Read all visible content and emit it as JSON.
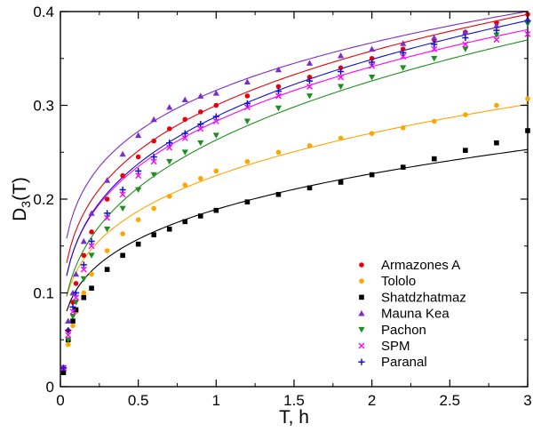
{
  "chart_data": {
    "type": "scatter",
    "title": "",
    "xlabel": "T, h",
    "ylabel_main": "D",
    "ylabel_sub": "3",
    "ylabel_tail": "(T)",
    "xlim": [
      0,
      3
    ],
    "ylim": [
      0,
      0.4
    ],
    "xticks": [
      0,
      0.5,
      1,
      1.5,
      2,
      2.5,
      3
    ],
    "xtick_labels": [
      "0",
      "0.5",
      "1",
      "1.5",
      "2",
      "2.5",
      "3"
    ],
    "yticks": [
      0,
      0.1,
      0.2,
      0.3,
      0.4
    ],
    "ytick_labels": [
      "0",
      "0.1",
      "0.2",
      "0.3",
      "0.4"
    ],
    "grid": false,
    "legend_position": "bottom-right",
    "series": [
      {
        "name": "Armazones A",
        "color": "#e8000b",
        "marker": "circle",
        "values": [
          [
            0.02,
            0.02
          ],
          [
            0.05,
            0.06
          ],
          [
            0.08,
            0.09
          ],
          [
            0.1,
            0.11
          ],
          [
            0.15,
            0.14
          ],
          [
            0.2,
            0.165
          ],
          [
            0.3,
            0.2
          ],
          [
            0.4,
            0.225
          ],
          [
            0.5,
            0.245
          ],
          [
            0.6,
            0.262
          ],
          [
            0.7,
            0.275
          ],
          [
            0.8,
            0.285
          ],
          [
            0.9,
            0.293
          ],
          [
            1.0,
            0.3
          ],
          [
            1.2,
            0.31
          ],
          [
            1.4,
            0.32
          ],
          [
            1.6,
            0.33
          ],
          [
            1.8,
            0.34
          ],
          [
            2.0,
            0.35
          ],
          [
            2.2,
            0.36
          ],
          [
            2.4,
            0.37
          ],
          [
            2.6,
            0.378
          ],
          [
            2.8,
            0.388
          ],
          [
            3.0,
            0.397
          ]
        ]
      },
      {
        "name": "Tololo",
        "color": "#ffa500",
        "marker": "circle",
        "values": [
          [
            0.02,
            0.02
          ],
          [
            0.05,
            0.045
          ],
          [
            0.08,
            0.065
          ],
          [
            0.1,
            0.08
          ],
          [
            0.15,
            0.1
          ],
          [
            0.2,
            0.12
          ],
          [
            0.3,
            0.145
          ],
          [
            0.4,
            0.163
          ],
          [
            0.5,
            0.178
          ],
          [
            0.6,
            0.19
          ],
          [
            0.7,
            0.203
          ],
          [
            0.8,
            0.215
          ],
          [
            0.9,
            0.222
          ],
          [
            1.0,
            0.23
          ],
          [
            1.2,
            0.24
          ],
          [
            1.4,
            0.25
          ],
          [
            1.6,
            0.257
          ],
          [
            1.8,
            0.265
          ],
          [
            2.0,
            0.27
          ],
          [
            2.2,
            0.276
          ],
          [
            2.4,
            0.283
          ],
          [
            2.6,
            0.29
          ],
          [
            2.8,
            0.3
          ],
          [
            3.0,
            0.307
          ]
        ]
      },
      {
        "name": "Shatdzhatmaz",
        "color": "#000000",
        "marker": "square",
        "values": [
          [
            0.02,
            0.015
          ],
          [
            0.05,
            0.05
          ],
          [
            0.08,
            0.07
          ],
          [
            0.1,
            0.082
          ],
          [
            0.15,
            0.095
          ],
          [
            0.2,
            0.105
          ],
          [
            0.3,
            0.125
          ],
          [
            0.4,
            0.14
          ],
          [
            0.5,
            0.152
          ],
          [
            0.6,
            0.162
          ],
          [
            0.7,
            0.168
          ],
          [
            0.8,
            0.176
          ],
          [
            0.9,
            0.182
          ],
          [
            1.0,
            0.188
          ],
          [
            1.2,
            0.197
          ],
          [
            1.4,
            0.205
          ],
          [
            1.6,
            0.212
          ],
          [
            1.8,
            0.218
          ],
          [
            2.0,
            0.226
          ],
          [
            2.2,
            0.234
          ],
          [
            2.4,
            0.243
          ],
          [
            2.6,
            0.252
          ],
          [
            2.8,
            0.26
          ],
          [
            3.0,
            0.273
          ]
        ]
      },
      {
        "name": "Mauna Kea",
        "color": "#7a2ec9",
        "marker": "triangle-up",
        "values": [
          [
            0.02,
            0.02
          ],
          [
            0.05,
            0.07
          ],
          [
            0.08,
            0.1
          ],
          [
            0.1,
            0.12
          ],
          [
            0.15,
            0.155
          ],
          [
            0.2,
            0.185
          ],
          [
            0.3,
            0.22
          ],
          [
            0.4,
            0.248
          ],
          [
            0.5,
            0.268
          ],
          [
            0.6,
            0.285
          ],
          [
            0.7,
            0.298
          ],
          [
            0.8,
            0.306
          ],
          [
            0.9,
            0.31
          ],
          [
            1.0,
            0.313
          ],
          [
            1.2,
            0.325
          ],
          [
            1.4,
            0.338
          ],
          [
            1.6,
            0.345
          ],
          [
            1.8,
            0.353
          ],
          [
            2.0,
            0.36
          ],
          [
            2.2,
            0.366
          ],
          [
            2.4,
            0.372
          ],
          [
            2.6,
            0.378
          ],
          [
            2.8,
            0.385
          ],
          [
            3.0,
            0.392
          ]
        ]
      },
      {
        "name": "Pachon",
        "color": "#1e8f1e",
        "marker": "triangle-down",
        "values": [
          [
            0.02,
            0.02
          ],
          [
            0.05,
            0.05
          ],
          [
            0.08,
            0.075
          ],
          [
            0.1,
            0.09
          ],
          [
            0.15,
            0.115
          ],
          [
            0.2,
            0.14
          ],
          [
            0.3,
            0.168
          ],
          [
            0.4,
            0.19
          ],
          [
            0.5,
            0.21
          ],
          [
            0.6,
            0.226
          ],
          [
            0.7,
            0.24
          ],
          [
            0.8,
            0.25
          ],
          [
            0.9,
            0.26
          ],
          [
            1.0,
            0.268
          ],
          [
            1.2,
            0.283
          ],
          [
            1.4,
            0.297
          ],
          [
            1.6,
            0.31
          ],
          [
            1.8,
            0.32
          ],
          [
            2.0,
            0.33
          ],
          [
            2.2,
            0.34
          ],
          [
            2.4,
            0.35
          ],
          [
            2.6,
            0.36
          ],
          [
            2.8,
            0.375
          ],
          [
            3.0,
            0.387
          ]
        ]
      },
      {
        "name": "SPM",
        "color": "#ff00ff",
        "marker": "x",
        "values": [
          [
            0.02,
            0.02
          ],
          [
            0.05,
            0.055
          ],
          [
            0.08,
            0.08
          ],
          [
            0.1,
            0.095
          ],
          [
            0.15,
            0.125
          ],
          [
            0.2,
            0.15
          ],
          [
            0.3,
            0.18
          ],
          [
            0.4,
            0.205
          ],
          [
            0.5,
            0.225
          ],
          [
            0.6,
            0.24
          ],
          [
            0.7,
            0.255
          ],
          [
            0.8,
            0.265
          ],
          [
            0.9,
            0.275
          ],
          [
            1.0,
            0.283
          ],
          [
            1.2,
            0.298
          ],
          [
            1.4,
            0.31
          ],
          [
            1.6,
            0.32
          ],
          [
            1.8,
            0.33
          ],
          [
            2.0,
            0.342
          ],
          [
            2.2,
            0.352
          ],
          [
            2.4,
            0.36
          ],
          [
            2.6,
            0.365
          ],
          [
            2.8,
            0.37
          ],
          [
            3.0,
            0.376
          ]
        ]
      },
      {
        "name": "Paranal",
        "color": "#1010d0",
        "marker": "plus",
        "values": [
          [
            0.02,
            0.02
          ],
          [
            0.05,
            0.06
          ],
          [
            0.08,
            0.085
          ],
          [
            0.1,
            0.1
          ],
          [
            0.15,
            0.13
          ],
          [
            0.2,
            0.155
          ],
          [
            0.3,
            0.185
          ],
          [
            0.4,
            0.21
          ],
          [
            0.5,
            0.23
          ],
          [
            0.6,
            0.245
          ],
          [
            0.7,
            0.26
          ],
          [
            0.8,
            0.27
          ],
          [
            0.9,
            0.28
          ],
          [
            1.0,
            0.288
          ],
          [
            1.2,
            0.302
          ],
          [
            1.4,
            0.315
          ],
          [
            1.6,
            0.326
          ],
          [
            1.8,
            0.336
          ],
          [
            2.0,
            0.346
          ],
          [
            2.2,
            0.356
          ],
          [
            2.4,
            0.365
          ],
          [
            2.6,
            0.372
          ],
          [
            2.8,
            0.38
          ],
          [
            3.0,
            0.39
          ]
        ]
      }
    ],
    "fits": [
      {
        "series": "Armazones A",
        "a": 0.3,
        "b": 0.255
      },
      {
        "series": "Tololo",
        "a": 0.225,
        "b": 0.265
      },
      {
        "series": "Shatdzhatmaz",
        "a": 0.189,
        "b": 0.265
      },
      {
        "series": "Mauna Kea",
        "a": 0.316,
        "b": 0.215
      },
      {
        "series": "Pachon",
        "a": 0.263,
        "b": 0.31
      },
      {
        "series": "SPM",
        "a": 0.283,
        "b": 0.27
      },
      {
        "series": "Paranal",
        "a": 0.288,
        "b": 0.277
      }
    ]
  }
}
